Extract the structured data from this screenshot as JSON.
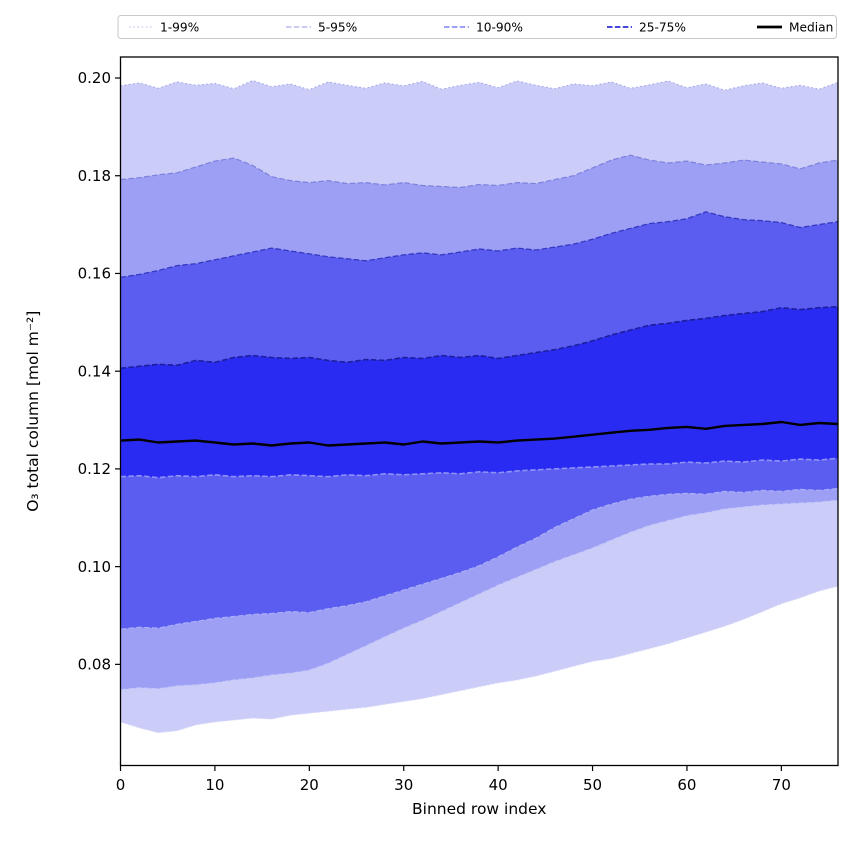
{
  "figure": {
    "background": "#ffffff"
  },
  "chart_data": {
    "type": "area",
    "subtype": "percentile-band-fan-chart",
    "title": "",
    "xlabel": "Binned row index",
    "ylabel": "O₃ total column [mol m⁻²]",
    "xlim": [
      0,
      76
    ],
    "ylim": [
      0.0593,
      0.2043
    ],
    "xticks": [
      0,
      10,
      20,
      30,
      40,
      50,
      60,
      70
    ],
    "xticklabels": [
      "0",
      "10",
      "20",
      "30",
      "40",
      "50",
      "60",
      "70"
    ],
    "yticks": [
      0.2,
      0.18,
      0.16,
      0.14,
      0.12,
      0.1,
      0.08
    ],
    "yticklabels": [
      "0.20",
      "0.18",
      "0.16",
      "0.14",
      "0.12",
      "0.10",
      "0.08"
    ],
    "grid": false,
    "legend_position": "top-outside",
    "x": [
      0,
      2,
      4,
      6,
      8,
      10,
      12,
      14,
      16,
      18,
      20,
      22,
      24,
      26,
      28,
      30,
      32,
      34,
      36,
      38,
      40,
      42,
      44,
      46,
      48,
      50,
      52,
      54,
      56,
      58,
      60,
      62,
      64,
      66,
      68,
      70,
      72,
      74,
      76
    ],
    "percentiles": {
      "p01": [
        0.0682,
        0.067,
        0.066,
        0.0664,
        0.0676,
        0.0682,
        0.0686,
        0.069,
        0.0688,
        0.0696,
        0.07,
        0.0704,
        0.0708,
        0.0712,
        0.0718,
        0.0724,
        0.073,
        0.0738,
        0.0746,
        0.0754,
        0.0762,
        0.0768,
        0.0776,
        0.0786,
        0.0796,
        0.0806,
        0.0812,
        0.0822,
        0.0832,
        0.0842,
        0.0854,
        0.0866,
        0.0878,
        0.0892,
        0.0908,
        0.0924,
        0.0936,
        0.095,
        0.096
      ],
      "p05": [
        0.0748,
        0.0752,
        0.075,
        0.0756,
        0.0758,
        0.0762,
        0.0768,
        0.0772,
        0.0778,
        0.0782,
        0.0788,
        0.0802,
        0.082,
        0.0838,
        0.0856,
        0.0874,
        0.089,
        0.0908,
        0.0926,
        0.0944,
        0.0962,
        0.0978,
        0.0994,
        0.101,
        0.1024,
        0.1038,
        0.1054,
        0.107,
        0.1084,
        0.1094,
        0.1104,
        0.111,
        0.1118,
        0.1122,
        0.1126,
        0.1128,
        0.113,
        0.1132,
        0.1136
      ],
      "p10": [
        0.0872,
        0.0876,
        0.0874,
        0.0882,
        0.0888,
        0.0894,
        0.0898,
        0.0902,
        0.0904,
        0.0908,
        0.0906,
        0.0914,
        0.092,
        0.0928,
        0.094,
        0.0952,
        0.0964,
        0.0976,
        0.0988,
        0.1002,
        0.102,
        0.104,
        0.1058,
        0.108,
        0.1098,
        0.1116,
        0.1128,
        0.1138,
        0.1144,
        0.1148,
        0.115,
        0.1148,
        0.1154,
        0.1152,
        0.1156,
        0.1154,
        0.1158,
        0.1156,
        0.116
      ],
      "p25": [
        0.1184,
        0.1186,
        0.1182,
        0.1186,
        0.1184,
        0.1188,
        0.1184,
        0.1186,
        0.1184,
        0.1188,
        0.1186,
        0.1184,
        0.1188,
        0.1186,
        0.119,
        0.1188,
        0.119,
        0.1192,
        0.119,
        0.1194,
        0.1192,
        0.1196,
        0.1198,
        0.12,
        0.1202,
        0.1204,
        0.1206,
        0.1208,
        0.121,
        0.121,
        0.1214,
        0.1212,
        0.1216,
        0.1214,
        0.1218,
        0.1216,
        0.122,
        0.1218,
        0.1222
      ],
      "p75": [
        0.1406,
        0.141,
        0.1414,
        0.1412,
        0.1422,
        0.1418,
        0.1428,
        0.1432,
        0.1428,
        0.1426,
        0.1428,
        0.1422,
        0.1418,
        0.1424,
        0.1422,
        0.1428,
        0.1426,
        0.1432,
        0.1428,
        0.1432,
        0.1426,
        0.1432,
        0.1438,
        0.1444,
        0.1452,
        0.1462,
        0.1474,
        0.1484,
        0.1494,
        0.1498,
        0.1504,
        0.1508,
        0.1514,
        0.1518,
        0.1522,
        0.153,
        0.1526,
        0.153,
        0.1532
      ],
      "p90": [
        0.1592,
        0.1598,
        0.1606,
        0.1616,
        0.162,
        0.1628,
        0.1636,
        0.1644,
        0.1652,
        0.1646,
        0.164,
        0.1634,
        0.163,
        0.1626,
        0.1632,
        0.1638,
        0.1642,
        0.1638,
        0.1644,
        0.165,
        0.1646,
        0.1652,
        0.1648,
        0.1654,
        0.166,
        0.167,
        0.1682,
        0.1692,
        0.1702,
        0.1706,
        0.1712,
        0.1726,
        0.1716,
        0.171,
        0.1708,
        0.1704,
        0.1694,
        0.17,
        0.1706
      ],
      "p95": [
        0.1792,
        0.1796,
        0.1802,
        0.1806,
        0.1818,
        0.183,
        0.1836,
        0.1821,
        0.1798,
        0.179,
        0.1786,
        0.179,
        0.1784,
        0.1786,
        0.1781,
        0.1786,
        0.178,
        0.1778,
        0.1776,
        0.1782,
        0.178,
        0.1786,
        0.1784,
        0.1792,
        0.18,
        0.1816,
        0.1832,
        0.1842,
        0.1832,
        0.1826,
        0.183,
        0.1822,
        0.1826,
        0.1832,
        0.1828,
        0.1824,
        0.1814,
        0.1826,
        0.1832
      ],
      "p99": [
        0.1984,
        0.199,
        0.1979,
        0.1992,
        0.1985,
        0.1989,
        0.1978,
        0.1995,
        0.1982,
        0.1988,
        0.1976,
        0.1992,
        0.1985,
        0.1979,
        0.199,
        0.1984,
        0.1993,
        0.1977,
        0.1985,
        0.1991,
        0.198,
        0.1994,
        0.1985,
        0.1978,
        0.1988,
        0.1984,
        0.1992,
        0.1979,
        0.1986,
        0.1994,
        0.198,
        0.1988,
        0.1975,
        0.1984,
        0.199,
        0.1979,
        0.1985,
        0.1977,
        0.1991
      ]
    },
    "median_values": [
      0.1258,
      0.126,
      0.1254,
      0.1256,
      0.1258,
      0.1254,
      0.125,
      0.1252,
      0.1248,
      0.1252,
      0.1254,
      0.1248,
      0.125,
      0.1252,
      0.1254,
      0.125,
      0.1256,
      0.1252,
      0.1254,
      0.1256,
      0.1254,
      0.1258,
      0.126,
      0.1262,
      0.1266,
      0.127,
      0.1274,
      0.1278,
      0.128,
      0.1284,
      0.1286,
      0.1282,
      0.1288,
      0.129,
      0.1292,
      0.1296,
      0.129,
      0.1294,
      0.1292
    ],
    "bands": [
      {
        "range": "1-99%",
        "lower": "p01",
        "upper": "p99",
        "fill": "#cbcdf8"
      },
      {
        "range": "5-95%",
        "lower": "p05",
        "upper": "p95",
        "fill": "#9c9ff4"
      },
      {
        "range": "10-90%",
        "lower": "p10",
        "upper": "p90",
        "fill": "#5a5df0"
      },
      {
        "range": "25-75%",
        "lower": "p25",
        "upper": "p75",
        "fill": "#2a2bf2"
      }
    ],
    "edge_styles": {
      "p99": {
        "color": "#a2a5e8",
        "dash": "dotted",
        "width": 1.1
      },
      "p95": {
        "color": "#7d80dc",
        "dash": "dashed",
        "width": 1.2
      },
      "p90": {
        "color": "#3538c0",
        "dash": "dashed",
        "width": 1.3
      },
      "p75": {
        "color": "#1c1e9c",
        "dash": "dashed",
        "width": 1.6
      },
      "p25": {
        "color": "#8e92f8",
        "dash": "dashed",
        "width": 1.6
      },
      "p10": {
        "color": "#abaef8",
        "dash": "dashed",
        "width": 1.2
      },
      "p05": {
        "color": "#c3c6fa",
        "dash": "dashed",
        "width": 1.1
      },
      "p01": {
        "color": "#d9dbfa",
        "dash": "dotted",
        "width": 1.1
      }
    },
    "median_style": {
      "color": "#000000",
      "width": 2.4
    },
    "legend": [
      {
        "label": "1-99%",
        "color": "#c5c8f0",
        "dash": "dotted",
        "width": 1.2
      },
      {
        "label": "5-95%",
        "color": "#a9acf0",
        "dash": "dashed",
        "width": 1.3
      },
      {
        "label": "10-90%",
        "color": "#7f82ef",
        "dash": "dashed",
        "width": 1.5
      },
      {
        "label": "25-75%",
        "color": "#4548d8",
        "dash": "dashed",
        "width": 1.9
      },
      {
        "label": "Median",
        "color": "#000000",
        "dash": "solid",
        "width": 2.8
      }
    ],
    "legend_border_color": "#c9c9c9",
    "axis_color": "#000000"
  }
}
